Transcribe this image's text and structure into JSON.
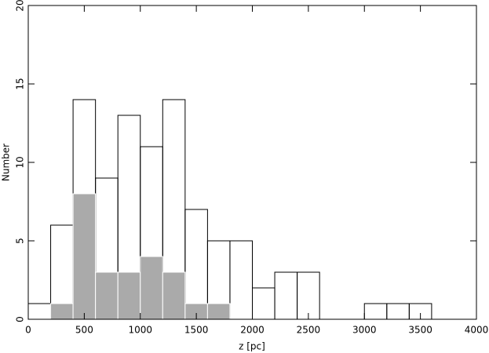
{
  "chart_data": {
    "type": "histogram",
    "x_label": "z [pc]",
    "y_label": "Number",
    "bins": [
      0,
      200,
      400,
      600,
      800,
      1000,
      1200,
      1400,
      1600,
      1800,
      2000,
      2200,
      2400,
      2600,
      2800,
      3000,
      3200,
      3400,
      3600
    ],
    "series": [
      {
        "color": "#000000",
        "filled": false,
        "values": [
          1,
          6,
          14,
          9,
          13,
          11,
          14,
          7,
          5,
          5,
          2,
          3,
          3,
          0,
          0,
          1,
          1,
          1
        ]
      },
      {
        "color": "#aaaaaa",
        "filled": true,
        "values": [
          0,
          1,
          8,
          3,
          3,
          4,
          3,
          1,
          1,
          0,
          0,
          0,
          0,
          0,
          0,
          0,
          0,
          0
        ]
      }
    ],
    "xlim": [
      0,
      4000
    ],
    "xticks": [
      0,
      500,
      1000,
      1500,
      2000,
      2500,
      3000,
      3500,
      4000
    ],
    "ylim": [
      0,
      20
    ],
    "yticks": [
      0,
      5,
      10,
      15,
      20
    ]
  }
}
